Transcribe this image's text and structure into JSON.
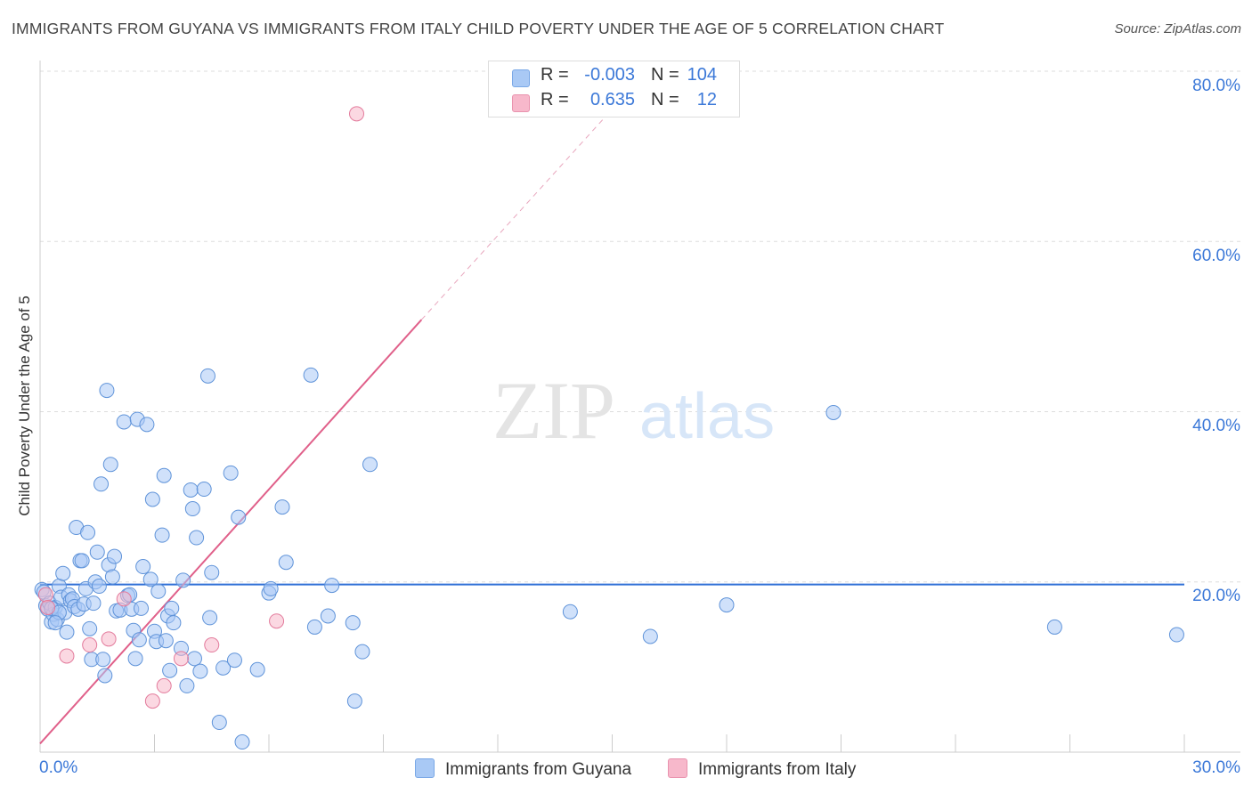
{
  "title": "IMMIGRANTS FROM GUYANA VS IMMIGRANTS FROM ITALY CHILD POVERTY UNDER THE AGE OF 5 CORRELATION CHART",
  "source": "Source: ZipAtlas.com",
  "watermark": {
    "zip": "ZIP",
    "atlas": "atlas"
  },
  "legend_top": {
    "rows": [
      {
        "r_label": "R =",
        "r_value": "-0.003",
        "n_label": "N =",
        "n_value": "104",
        "color": "#a9c9f5"
      },
      {
        "r_label": "R =",
        "r_value": "0.635",
        "n_label": "N =",
        "n_value": "12",
        "color": "#f7b8cb"
      }
    ]
  },
  "colors": {
    "guyana_fill": "#a9c9f5",
    "guyana_stroke": "#5f93d9",
    "guyana_line": "#2f6fd6",
    "italy_fill": "#f7b8cb",
    "italy_stroke": "#e37b9c",
    "italy_line": "#e0608a",
    "tick_label": "#3b78d8",
    "grid": "#dddddd"
  },
  "chart_data": {
    "type": "scatter",
    "title": "IMMIGRANTS FROM GUYANA VS IMMIGRANTS FROM ITALY CHILD POVERTY UNDER THE AGE OF 5 CORRELATION CHART",
    "xlabel": "",
    "ylabel": "Child Poverty Under the Age of 5",
    "xlim": [
      0,
      30
    ],
    "ylim": [
      0,
      80
    ],
    "x_tick_labels": [
      "0.0%",
      "30.0%"
    ],
    "y_ticks": [
      20,
      40,
      60,
      80
    ],
    "y_tick_labels": [
      "20.0%",
      "40.0%",
      "60.0%",
      "80.0%"
    ],
    "grid": true,
    "legend": "bottom",
    "series": [
      {
        "name": "Immigrants from Guyana",
        "trend": {
          "x0": 0,
          "y0": 19.7,
          "x1": 30,
          "y1": 19.7
        },
        "points": [
          [
            0.05,
            19.1
          ],
          [
            0.1,
            18.8
          ],
          [
            0.15,
            17.2
          ],
          [
            0.2,
            16.8
          ],
          [
            0.25,
            17.5
          ],
          [
            0.3,
            15.3
          ],
          [
            0.35,
            16.2
          ],
          [
            0.4,
            17.0
          ],
          [
            0.45,
            15.6
          ],
          [
            0.5,
            19.5
          ],
          [
            0.55,
            18.2
          ],
          [
            0.6,
            21.0
          ],
          [
            0.65,
            16.4
          ],
          [
            0.7,
            14.1
          ],
          [
            0.75,
            18.5
          ],
          [
            0.8,
            17.8
          ],
          [
            0.85,
            18.0
          ],
          [
            0.9,
            17.1
          ],
          [
            0.95,
            26.4
          ],
          [
            1.0,
            16.8
          ],
          [
            1.05,
            22.5
          ],
          [
            1.1,
            22.5
          ],
          [
            1.15,
            17.4
          ],
          [
            1.2,
            19.2
          ],
          [
            1.25,
            25.8
          ],
          [
            1.3,
            14.5
          ],
          [
            1.35,
            10.9
          ],
          [
            1.4,
            17.5
          ],
          [
            1.45,
            20.0
          ],
          [
            1.5,
            23.5
          ],
          [
            1.55,
            19.5
          ],
          [
            1.6,
            31.5
          ],
          [
            1.65,
            10.9
          ],
          [
            1.7,
            9.0
          ],
          [
            1.75,
            42.5
          ],
          [
            1.8,
            22.0
          ],
          [
            1.85,
            33.8
          ],
          [
            1.9,
            20.6
          ],
          [
            1.95,
            23.0
          ],
          [
            2.0,
            16.6
          ],
          [
            2.1,
            16.7
          ],
          [
            2.2,
            38.8
          ],
          [
            2.3,
            18.4
          ],
          [
            2.35,
            18.5
          ],
          [
            2.4,
            16.8
          ],
          [
            2.45,
            14.3
          ],
          [
            2.5,
            11.0
          ],
          [
            2.55,
            39.1
          ],
          [
            2.6,
            13.2
          ],
          [
            2.65,
            16.9
          ],
          [
            2.7,
            21.8
          ],
          [
            2.8,
            38.5
          ],
          [
            2.9,
            20.3
          ],
          [
            2.95,
            29.7
          ],
          [
            3.0,
            14.2
          ],
          [
            3.05,
            13.0
          ],
          [
            3.1,
            18.9
          ],
          [
            3.2,
            25.5
          ],
          [
            3.25,
            32.5
          ],
          [
            3.3,
            13.1
          ],
          [
            3.35,
            16.0
          ],
          [
            3.4,
            9.6
          ],
          [
            3.5,
            15.2
          ],
          [
            3.45,
            16.9
          ],
          [
            3.75,
            20.2
          ],
          [
            3.7,
            12.2
          ],
          [
            3.85,
            7.8
          ],
          [
            3.95,
            30.8
          ],
          [
            4.0,
            28.6
          ],
          [
            4.05,
            11.0
          ],
          [
            4.1,
            25.2
          ],
          [
            4.2,
            9.5
          ],
          [
            4.3,
            30.9
          ],
          [
            4.4,
            44.2
          ],
          [
            4.45,
            15.8
          ],
          [
            4.5,
            21.1
          ],
          [
            4.7,
            3.5
          ],
          [
            4.8,
            9.9
          ],
          [
            5.0,
            32.8
          ],
          [
            5.1,
            10.8
          ],
          [
            5.2,
            27.6
          ],
          [
            5.3,
            1.2
          ],
          [
            5.7,
            9.7
          ],
          [
            6.0,
            18.7
          ],
          [
            6.05,
            19.2
          ],
          [
            6.35,
            28.8
          ],
          [
            6.45,
            22.3
          ],
          [
            7.1,
            44.3
          ],
          [
            7.2,
            14.7
          ],
          [
            7.55,
            16.0
          ],
          [
            7.65,
            19.6
          ],
          [
            8.2,
            15.2
          ],
          [
            8.25,
            6.0
          ],
          [
            8.45,
            11.8
          ],
          [
            8.65,
            33.8
          ],
          [
            13.9,
            16.5
          ],
          [
            16.0,
            13.6
          ],
          [
            18.0,
            17.3
          ],
          [
            20.8,
            39.9
          ],
          [
            26.6,
            14.7
          ],
          [
            29.8,
            13.8
          ],
          [
            0.3,
            16.9
          ],
          [
            0.5,
            16.4
          ],
          [
            0.4,
            15.2
          ]
        ]
      },
      {
        "name": "Immigrants from Italy",
        "trend": {
          "x0": 0,
          "y0": 1.0,
          "x1": 10,
          "y1": 50.8,
          "dashed_to_x": 15.7,
          "dashed_to_y": 79.0
        },
        "points": [
          [
            8.3,
            75.0
          ],
          [
            0.15,
            18.5
          ],
          [
            0.2,
            17.0
          ],
          [
            0.7,
            11.3
          ],
          [
            1.3,
            12.6
          ],
          [
            1.8,
            13.3
          ],
          [
            2.2,
            18.0
          ],
          [
            2.95,
            6.0
          ],
          [
            3.25,
            7.8
          ],
          [
            3.7,
            11.0
          ],
          [
            4.5,
            12.6
          ],
          [
            6.2,
            15.4
          ]
        ]
      }
    ]
  },
  "bottom_legend": {
    "guyana": "Immigrants from Guyana",
    "italy": "Immigrants from Italy"
  }
}
